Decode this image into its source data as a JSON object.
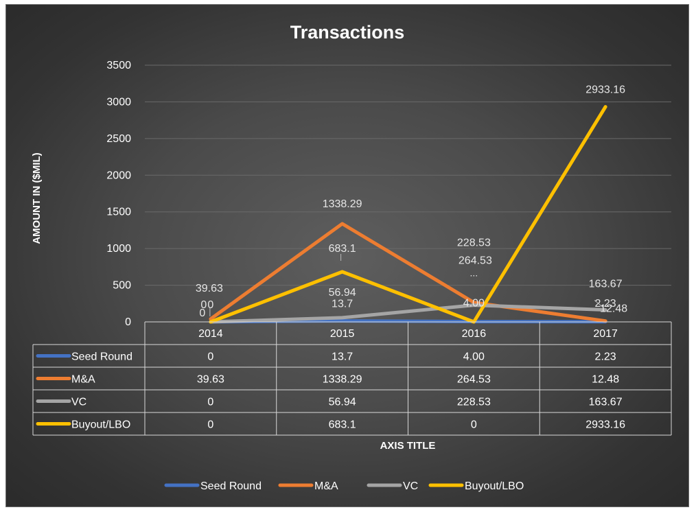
{
  "chart_data": {
    "type": "line",
    "title": "Transactions",
    "xlabel": "AXIS TITLE",
    "ylabel": "AMOUNT IN  ($MIL)",
    "ylim": [
      0,
      3500
    ],
    "yticks": [
      0,
      500,
      1000,
      1500,
      2000,
      2500,
      3000,
      3500
    ],
    "categories": [
      "2014",
      "2015",
      "2016",
      "2017"
    ],
    "grid": true,
    "legend": "bottom",
    "data_table": true,
    "series": [
      {
        "name": "Seed Round",
        "color": "#4472c4",
        "values": [
          0,
          13.7,
          4.0,
          2.23
        ],
        "labels": [
          "0",
          "13.7",
          "4.00",
          "2.23"
        ],
        "point_labels": [
          "0",
          "13.7",
          "4.00",
          "2.23"
        ]
      },
      {
        "name": "M&A",
        "color": "#ed7d31",
        "values": [
          39.63,
          1338.29,
          264.53,
          12.48
        ],
        "labels": [
          "39.63",
          "1338.29",
          "264.53",
          "12.48"
        ],
        "point_labels": [
          "39.63",
          "1338.29",
          "264.53",
          "12.48"
        ]
      },
      {
        "name": "VC",
        "color": "#a5a5a5",
        "values": [
          0,
          56.94,
          228.53,
          163.67
        ],
        "labels": [
          "0",
          "56.94",
          "228.53",
          "163.67"
        ],
        "point_labels": [
          "0",
          "56.94",
          "228.53",
          "163.67"
        ]
      },
      {
        "name": "Buyout/LBO",
        "color": "#ffc000",
        "values": [
          0,
          683.1,
          0,
          2933.16
        ],
        "labels": [
          "0",
          "683.1",
          "0",
          "2933.16"
        ],
        "point_labels": [
          "0",
          "683.1",
          "",
          "2933.16"
        ]
      }
    ],
    "extra_annotations": [
      "..."
    ]
  }
}
